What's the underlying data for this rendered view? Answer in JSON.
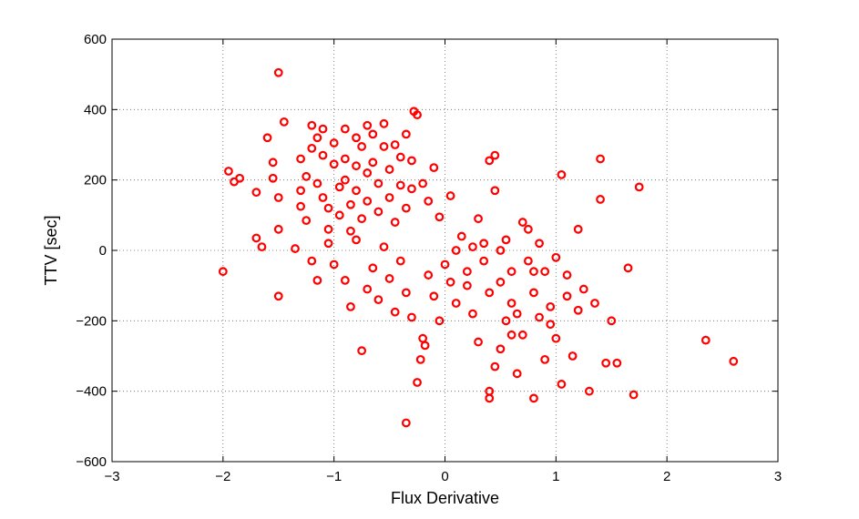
{
  "chart_data": {
    "type": "scatter",
    "xlabel": "Flux Derivative",
    "ylabel": "TTV [sec]",
    "xlim": [
      -3,
      3
    ],
    "ylim": [
      -600,
      600
    ],
    "xticks": [
      "−3",
      "−2",
      "−1",
      "0",
      "1",
      "2",
      "3"
    ],
    "yticks": [
      "600",
      "400",
      "200",
      "0",
      "−200",
      "−400",
      "−600"
    ],
    "grid": true,
    "marker": "open-circle",
    "color": "#ff0000",
    "points": [
      [
        -1.5,
        505
      ],
      [
        -2.0,
        -60
      ],
      [
        -1.95,
        225
      ],
      [
        -1.9,
        195
      ],
      [
        -1.85,
        205
      ],
      [
        -1.7,
        165
      ],
      [
        -1.7,
        35
      ],
      [
        -1.65,
        10
      ],
      [
        -1.6,
        320
      ],
      [
        -1.55,
        250
      ],
      [
        -1.55,
        205
      ],
      [
        -1.5,
        150
      ],
      [
        -1.5,
        60
      ],
      [
        -1.45,
        365
      ],
      [
        -1.5,
        -130
      ],
      [
        -1.35,
        5
      ],
      [
        -1.3,
        260
      ],
      [
        -1.3,
        170
      ],
      [
        -1.3,
        125
      ],
      [
        -1.25,
        210
      ],
      [
        -1.25,
        85
      ],
      [
        -1.2,
        355
      ],
      [
        -1.2,
        290
      ],
      [
        -1.15,
        320
      ],
      [
        -1.15,
        190
      ],
      [
        -1.1,
        345
      ],
      [
        -1.1,
        270
      ],
      [
        -1.1,
        150
      ],
      [
        -1.05,
        120
      ],
      [
        -1.05,
        60
      ],
      [
        -1.0,
        305
      ],
      [
        -1.0,
        245
      ],
      [
        -0.95,
        180
      ],
      [
        -0.95,
        100
      ],
      [
        -0.9,
        345
      ],
      [
        -0.9,
        260
      ],
      [
        -0.9,
        200
      ],
      [
        -0.85,
        130
      ],
      [
        -0.85,
        55
      ],
      [
        -0.8,
        320
      ],
      [
        -0.8,
        240
      ],
      [
        -0.8,
        170
      ],
      [
        -0.75,
        90
      ],
      [
        -0.75,
        295
      ],
      [
        -0.7,
        355
      ],
      [
        -0.7,
        220
      ],
      [
        -0.7,
        140
      ],
      [
        -0.65,
        330
      ],
      [
        -0.65,
        250
      ],
      [
        -0.6,
        190
      ],
      [
        -0.6,
        110
      ],
      [
        -0.55,
        360
      ],
      [
        -0.55,
        295
      ],
      [
        -0.5,
        230
      ],
      [
        -0.5,
        150
      ],
      [
        -0.45,
        300
      ],
      [
        -0.45,
        80
      ],
      [
        -0.4,
        265
      ],
      [
        -0.4,
        185
      ],
      [
        -0.35,
        120
      ],
      [
        -0.35,
        330
      ],
      [
        -0.3,
        255
      ],
      [
        -0.3,
        175
      ],
      [
        -0.28,
        395
      ],
      [
        -0.25,
        385
      ],
      [
        -0.2,
        190
      ],
      [
        -0.15,
        140
      ],
      [
        -0.1,
        235
      ],
      [
        -0.05,
        95
      ],
      [
        0.05,
        155
      ],
      [
        -1.2,
        -30
      ],
      [
        -1.15,
        -85
      ],
      [
        -1.05,
        20
      ],
      [
        -1.0,
        -40
      ],
      [
        -0.9,
        -85
      ],
      [
        -0.85,
        -160
      ],
      [
        -0.8,
        30
      ],
      [
        -0.75,
        -285
      ],
      [
        -0.7,
        -110
      ],
      [
        -0.65,
        -50
      ],
      [
        -0.6,
        -140
      ],
      [
        -0.55,
        10
      ],
      [
        -0.5,
        -80
      ],
      [
        -0.45,
        -175
      ],
      [
        -0.4,
        -30
      ],
      [
        -0.35,
        -120
      ],
      [
        -0.3,
        -190
      ],
      [
        -0.25,
        -375
      ],
      [
        -0.2,
        -250
      ],
      [
        -0.15,
        -70
      ],
      [
        -0.1,
        -130
      ],
      [
        -0.05,
        -200
      ],
      [
        -0.35,
        -490
      ],
      [
        -0.22,
        -310
      ],
      [
        -0.18,
        -270
      ],
      [
        0.0,
        -40
      ],
      [
        0.05,
        -90
      ],
      [
        0.1,
        -150
      ],
      [
        0.15,
        40
      ],
      [
        0.2,
        -60
      ],
      [
        0.25,
        -180
      ],
      [
        0.3,
        -260
      ],
      [
        0.3,
        90
      ],
      [
        0.35,
        -30
      ],
      [
        0.35,
        20
      ],
      [
        0.4,
        -120
      ],
      [
        0.4,
        255
      ],
      [
        0.45,
        270
      ],
      [
        0.45,
        170
      ],
      [
        0.4,
        -400
      ],
      [
        0.4,
        -420
      ],
      [
        0.45,
        -330
      ],
      [
        0.5,
        -90
      ],
      [
        0.5,
        -280
      ],
      [
        0.55,
        -200
      ],
      [
        0.55,
        30
      ],
      [
        0.6,
        -60
      ],
      [
        0.6,
        -150
      ],
      [
        0.65,
        -350
      ],
      [
        0.7,
        80
      ],
      [
        0.7,
        -240
      ],
      [
        0.75,
        -30
      ],
      [
        0.75,
        60
      ],
      [
        0.8,
        -120
      ],
      [
        0.8,
        -420
      ],
      [
        0.85,
        -190
      ],
      [
        0.85,
        20
      ],
      [
        0.9,
        -60
      ],
      [
        0.9,
        -310
      ],
      [
        0.95,
        -160
      ],
      [
        1.0,
        -20
      ],
      [
        1.0,
        -250
      ],
      [
        1.05,
        -380
      ],
      [
        1.05,
        215
      ],
      [
        1.1,
        -70
      ],
      [
        1.15,
        -300
      ],
      [
        1.2,
        60
      ],
      [
        1.2,
        -170
      ],
      [
        1.25,
        -110
      ],
      [
        1.3,
        -400
      ],
      [
        1.35,
        -150
      ],
      [
        1.4,
        145
      ],
      [
        1.4,
        260
      ],
      [
        1.45,
        -320
      ],
      [
        1.5,
        -200
      ],
      [
        1.55,
        -320
      ],
      [
        1.65,
        -50
      ],
      [
        1.7,
        -410
      ],
      [
        1.75,
        180
      ],
      [
        2.35,
        -255
      ],
      [
        2.6,
        -315
      ],
      [
        0.1,
        0
      ],
      [
        0.2,
        -100
      ],
      [
        0.25,
        10
      ],
      [
        0.5,
        0
      ],
      [
        0.6,
        -240
      ],
      [
        0.65,
        -180
      ],
      [
        0.8,
        -60
      ],
      [
        0.95,
        -210
      ],
      [
        1.1,
        -130
      ]
    ]
  }
}
